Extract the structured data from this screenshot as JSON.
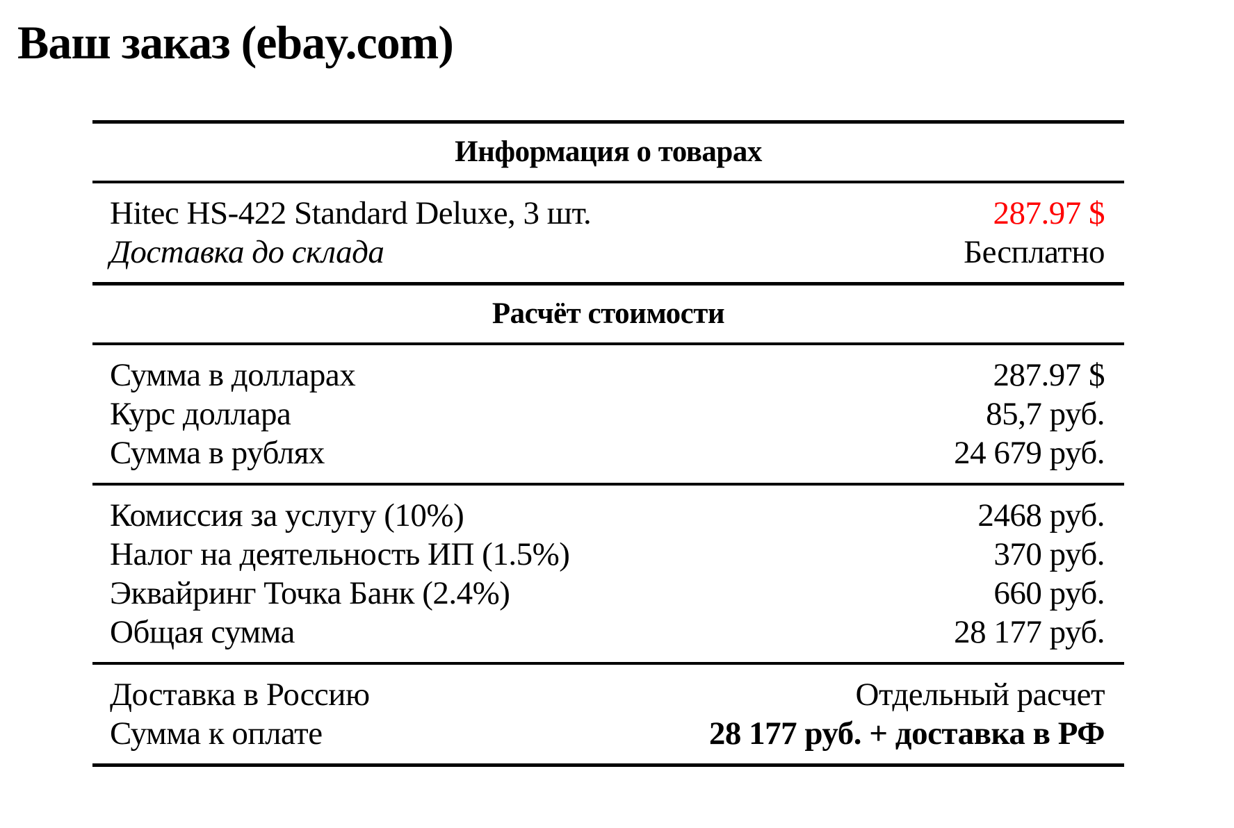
{
  "title": "Ваш заказ (ebay.com)",
  "colors": {
    "background": "#ffffff",
    "text": "#000000",
    "rule": "#000000",
    "price_highlight_red": "#ff0000"
  },
  "table": {
    "products_header": "Информация о товарах",
    "products": [
      {
        "label": "Hitec HS-422 Standard Deluxe, 3 шт.",
        "value": "287.97 $"
      },
      {
        "label": "Доставка до склада",
        "value": "Бесплатно"
      }
    ],
    "calc_header": "Расчёт стоимости",
    "conversion": [
      {
        "label": "Сумма в долларах",
        "value": "287.97 $"
      },
      {
        "label": "Курс доллара",
        "value": "85,7 руб."
      },
      {
        "label": "Сумма в рублях",
        "value": "24 679 руб."
      }
    ],
    "fees": [
      {
        "label": "Комиссия за услугу (10%)",
        "value": "2468 руб."
      },
      {
        "label": "Налог на деятельность ИП (1.5%)",
        "value": "370 руб."
      },
      {
        "label": "Эквайринг Точка Банк (2.4%)",
        "value": "660 руб."
      },
      {
        "label": "Общая сумма",
        "value": "28 177 руб."
      }
    ],
    "totals": [
      {
        "label": "Доставка в Россию",
        "value": "Отдельный расчет"
      },
      {
        "label": "Сумма к оплате",
        "value": "28 177 руб. + доставка в РФ"
      }
    ]
  }
}
